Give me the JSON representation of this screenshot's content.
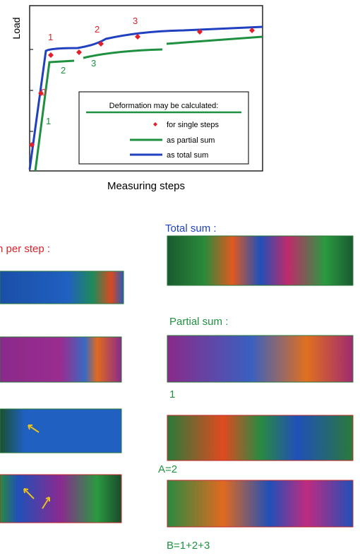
{
  "chart": {
    "y_label": "Load",
    "x_label": "Measuring steps",
    "point_labels": [
      "1",
      "0",
      "1",
      "2",
      "3",
      "2",
      "3"
    ]
  },
  "legend": {
    "title": "Deformation may be calculated:",
    "items": [
      "for single steps",
      "as partial sum",
      "as total sum"
    ]
  },
  "panels": {
    "left_title": "n per step :",
    "total_title": "Total sum :",
    "partial_title": "Partial sum :",
    "captions": [
      "1",
      "A=2",
      "B=1+2+3"
    ]
  }
}
